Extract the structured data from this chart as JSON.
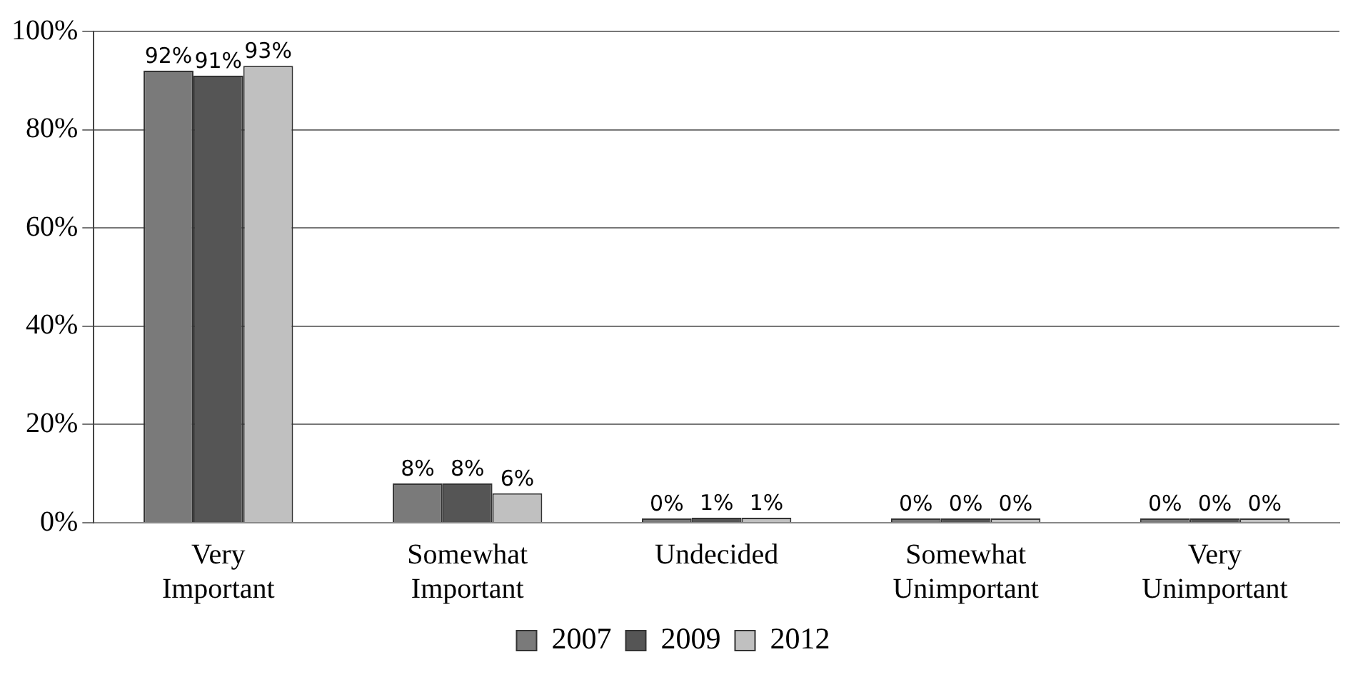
{
  "chart_data": {
    "type": "bar",
    "categories": [
      "Very Important",
      "Somewhat Important",
      "Undecided",
      "Somewhat Unimportant",
      "Very Unimportant"
    ],
    "series": [
      {
        "name": "2007",
        "color": "#7a7a7a",
        "values": [
          92,
          8,
          0,
          0,
          0
        ],
        "value_labels": [
          "92%",
          "8%",
          "0%",
          "0%",
          "0%"
        ]
      },
      {
        "name": "2009",
        "color": "#555555",
        "values": [
          91,
          8,
          1,
          0,
          0
        ],
        "value_labels": [
          "91%",
          "8%",
          "1%",
          "0%",
          "0%"
        ]
      },
      {
        "name": "2012",
        "color": "#c0c0c0",
        "values": [
          93,
          6,
          1,
          0,
          0
        ],
        "value_labels": [
          "93%",
          "6%",
          "1%",
          "0%",
          "0%"
        ]
      }
    ],
    "ylim": [
      0,
      100
    ],
    "yticks": [
      {
        "value": 0,
        "label": "0%"
      },
      {
        "value": 20,
        "label": "20%"
      },
      {
        "value": 40,
        "label": "40%"
      },
      {
        "value": 60,
        "label": "60%"
      },
      {
        "value": 80,
        "label": "80%"
      },
      {
        "value": 100,
        "label": "100%"
      }
    ],
    "grid": "y",
    "legend": "bottom"
  }
}
